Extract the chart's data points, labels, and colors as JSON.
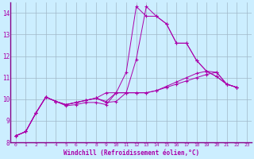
{
  "xlabel": "Windchill (Refroidissement éolien,°C)",
  "background_color": "#cceeff",
  "grid_color": "#a0b8c8",
  "line_color": "#aa00aa",
  "xlim": [
    -0.5,
    23.5
  ],
  "ylim": [
    8,
    14.5
  ],
  "yticks": [
    8,
    9,
    10,
    11,
    12,
    13,
    14
  ],
  "xticks": [
    0,
    1,
    2,
    3,
    4,
    5,
    6,
    7,
    8,
    9,
    10,
    11,
    12,
    13,
    14,
    15,
    16,
    17,
    18,
    19,
    20,
    21,
    22,
    23
  ],
  "series": [
    {
      "x": [
        0,
        1,
        2,
        3,
        4,
        5,
        6,
        7,
        8,
        9,
        10,
        11,
        12,
        13,
        14,
        15,
        16,
        17,
        18,
        19,
        20,
        21,
        22
      ],
      "y": [
        8.3,
        8.5,
        9.35,
        10.1,
        9.9,
        9.7,
        9.75,
        9.85,
        9.85,
        9.75,
        10.3,
        11.25,
        14.3,
        13.85,
        13.85,
        13.5,
        12.6,
        12.6,
        11.8,
        11.3,
        11.05,
        10.7,
        10.55
      ]
    },
    {
      "x": [
        0,
        1,
        2,
        3,
        4,
        5,
        6,
        7,
        8,
        9,
        10,
        11,
        12,
        13,
        14,
        15,
        16,
        17,
        18,
        19,
        20,
        21,
        22
      ],
      "y": [
        8.3,
        8.5,
        9.35,
        10.1,
        9.9,
        9.75,
        9.85,
        9.95,
        10.05,
        9.85,
        9.9,
        10.3,
        11.85,
        14.3,
        13.85,
        13.5,
        12.6,
        12.6,
        11.8,
        11.3,
        11.05,
        10.7,
        10.55
      ]
    },
    {
      "x": [
        0,
        1,
        2,
        3,
        4,
        5,
        6,
        7,
        8,
        9,
        10,
        11,
        12,
        13,
        14,
        15,
        16,
        17,
        18,
        19,
        20,
        21,
        22
      ],
      "y": [
        8.3,
        8.5,
        9.35,
        10.1,
        9.9,
        9.75,
        9.85,
        9.95,
        10.05,
        10.3,
        10.3,
        10.3,
        10.3,
        10.3,
        10.4,
        10.55,
        10.7,
        10.85,
        11.0,
        11.15,
        11.25,
        10.7,
        10.55
      ]
    },
    {
      "x": [
        0,
        1,
        2,
        3,
        4,
        5,
        6,
        7,
        8,
        9,
        10,
        11,
        12,
        13,
        14,
        15,
        16,
        17,
        18,
        19,
        20,
        21,
        22
      ],
      "y": [
        8.3,
        8.5,
        9.35,
        10.1,
        9.9,
        9.75,
        9.85,
        9.95,
        10.05,
        9.9,
        10.3,
        10.3,
        10.3,
        10.3,
        10.4,
        10.6,
        10.8,
        11.0,
        11.2,
        11.3,
        11.25,
        10.7,
        10.55
      ]
    }
  ]
}
